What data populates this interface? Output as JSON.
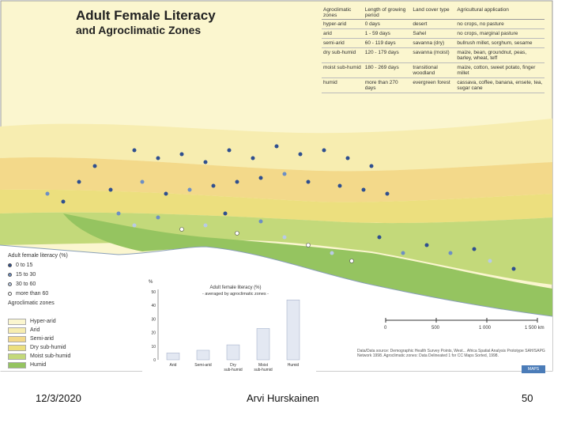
{
  "title_line1": "Adult Female Literacy",
  "title_line2": "and Agroclimatic Zones",
  "zone_table": {
    "headers": [
      "Agroclimatic zones",
      "Length of growing period",
      "Land cover type",
      "Agricultural application"
    ],
    "rows": [
      [
        "hyper-arid",
        "0 days",
        "desert",
        "no crops, no pasture"
      ],
      [
        "arid",
        "1 - 59 days",
        "Sahel",
        "no crops, marginal pasture"
      ],
      [
        "semi-arid",
        "60 - 119 days",
        "savanna (dry)",
        "bullrush millet, sorghum, sesame"
      ],
      [
        "dry sub-humid",
        "120 - 179 days",
        "savanna (moist)",
        "maize, bean, groundnut, peas, barley, wheat, teff"
      ],
      [
        "moist sub-humid",
        "180 - 269 days",
        "transitional woodland",
        "maize, cotton, sweet potato, finger millet"
      ],
      [
        "humid",
        "more than 270 days",
        "evergreen forest",
        "cassava, coffee, banana, ensete, tea, sugar cane"
      ]
    ]
  },
  "literacy_legend": {
    "title": "Adult female literacy (%)",
    "items": [
      {
        "label": "0 to 15",
        "color": "#2f4f8f"
      },
      {
        "label": "15 to 30",
        "color": "#6d8fc4"
      },
      {
        "label": "30 to 60",
        "color": "#b9cbe6"
      },
      {
        "label": "more than 60",
        "color": "#ffffff"
      }
    ]
  },
  "agro_legend": {
    "title": "Agroclimatic zones",
    "items": [
      {
        "label": "Hyper-arid",
        "color": "#fbf6cf"
      },
      {
        "label": "Arid",
        "color": "#f7edb0"
      },
      {
        "label": "Semi-arid",
        "color": "#f3d98a"
      },
      {
        "label": "Dry sub-humid",
        "color": "#ecdf7e"
      },
      {
        "label": "Moist sub-humid",
        "color": "#c3d97a"
      },
      {
        "label": "Humid",
        "color": "#95c460"
      }
    ]
  },
  "chart_data": {
    "type": "bar",
    "title": "Adult female literacy (%)",
    "subtitle": "- averaged by agroclimatic zones -",
    "ylabel": "%",
    "ylim": [
      0,
      50
    ],
    "yticks": [
      0,
      10,
      20,
      30,
      40,
      50
    ],
    "categories": [
      "Arid",
      "Semi-arid",
      "Dry sub-humid",
      "Moist sub-humid",
      "Humid"
    ],
    "values": [
      5,
      7,
      11,
      23,
      44
    ]
  },
  "scale_bar": {
    "labels": [
      "0",
      "500",
      "1 000",
      "1 500 km"
    ]
  },
  "source_text": "Data/Data source: Demographic Health Survey Points, West... Africa Spatial Analysis Prototype SAH/SAPG Network 1998. Agroclimatic zones: Data Delineated 1 for CC Maps Sorted, 1998.",
  "logo_text": "MAPS",
  "footer": {
    "date": "12/3/2020",
    "author": "Arvi Hurskainen",
    "page": "50"
  }
}
